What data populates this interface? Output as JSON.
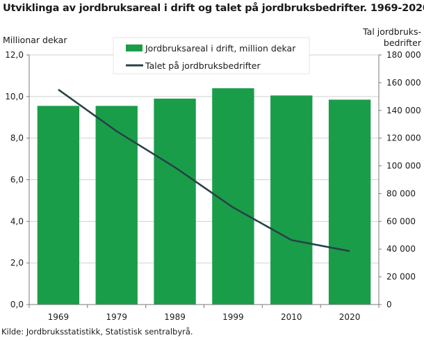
{
  "title": "Utviklinga av jordbruksareal i drift og talet på  jordbruksbedrifter. 1969-2020",
  "source": "Kilde: Jordbruksstatistikk, Statistisk sentralbyrå.",
  "colors": {
    "bar": "#1a9d49",
    "line": "#274247",
    "grid": "#d0d0d0",
    "axis": "#7a7a7a"
  },
  "chart_data": {
    "type": "bar+line",
    "categories": [
      "1969",
      "1979",
      "1989",
      "1999",
      "2010",
      "2020"
    ],
    "series": [
      {
        "name": "Jordbruksareal i drift,  million dekar",
        "type": "bar",
        "axis": "left",
        "values": [
          9.55,
          9.55,
          9.9,
          10.4,
          10.05,
          9.85
        ]
      },
      {
        "name": "Talet på jordbruksbedrifter",
        "type": "line",
        "axis": "right",
        "values": [
          155000,
          125000,
          99000,
          70000,
          46500,
          38500
        ]
      }
    ],
    "left_axis": {
      "label": "Millionar dekar",
      "min": 0,
      "max": 12,
      "step": 2,
      "ticks": [
        "0,0",
        "2,0",
        "4,0",
        "6,0",
        "8,0",
        "10,0",
        "12,0"
      ]
    },
    "right_axis": {
      "label_line1": "Tal jordbruks-",
      "label_line2": "bedrifter",
      "min": 0,
      "max": 180000,
      "step": 20000,
      "ticks": [
        "0",
        "20 000",
        "40 000",
        "60 000",
        "80 000",
        "100 000",
        "120 000",
        "140 000",
        "160 000",
        "180 000"
      ]
    },
    "grid": true,
    "legend_position": "top-center"
  }
}
